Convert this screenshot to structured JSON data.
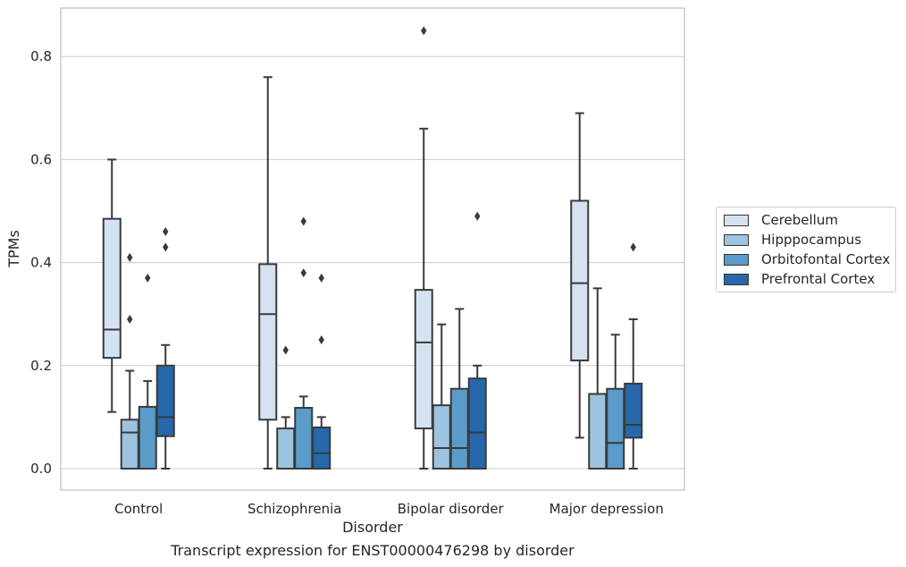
{
  "caption": "Transcript expression for ENST00000476298 by disorder",
  "chart_data": {
    "type": "boxplot",
    "xlabel": "Disorder",
    "ylabel": "TPMs",
    "ylim": [
      -0.04,
      0.89
    ],
    "yticks": [
      "0.0",
      "0.2",
      "0.4",
      "0.6",
      "0.8"
    ],
    "grid": true,
    "legend_position": "right",
    "categories": [
      "Control",
      "Schizophrenia",
      "Bipolar disorder",
      "Major depression"
    ],
    "series": [
      {
        "name": "Cerebellum",
        "color": "#d4e2f1",
        "boxes": [
          {
            "whislo": 0.11,
            "q1": 0.215,
            "med": 0.27,
            "q3": 0.485,
            "whishi": 0.6,
            "fliers": []
          },
          {
            "whislo": 0.0,
            "q1": 0.095,
            "med": 0.3,
            "q3": 0.397,
            "whishi": 0.76,
            "fliers": []
          },
          {
            "whislo": 0.0,
            "q1": 0.078,
            "med": 0.245,
            "q3": 0.347,
            "whishi": 0.66,
            "fliers": [
              0.85
            ]
          },
          {
            "whislo": 0.06,
            "q1": 0.21,
            "med": 0.36,
            "q3": 0.52,
            "whishi": 0.69,
            "fliers": []
          }
        ]
      },
      {
        "name": "Hipppocampus",
        "color": "#9cc4e0",
        "boxes": [
          {
            "whislo": 0.0,
            "q1": 0.0,
            "med": 0.07,
            "q3": 0.095,
            "whishi": 0.19,
            "fliers": [
              0.29,
              0.41
            ]
          },
          {
            "whislo": 0.0,
            "q1": 0.0,
            "med": 0.0,
            "q3": 0.078,
            "whishi": 0.1,
            "fliers": [
              0.23
            ]
          },
          {
            "whislo": 0.0,
            "q1": 0.0,
            "med": 0.04,
            "q3": 0.123,
            "whishi": 0.28,
            "fliers": []
          },
          {
            "whislo": 0.0,
            "q1": 0.0,
            "med": 0.0,
            "q3": 0.145,
            "whishi": 0.35,
            "fliers": []
          }
        ]
      },
      {
        "name": "Orbitofontal Cortex",
        "color": "#5a9bc9",
        "boxes": [
          {
            "whislo": 0.0,
            "q1": 0.0,
            "med": 0.0,
            "q3": 0.12,
            "whishi": 0.17,
            "fliers": [
              0.37
            ]
          },
          {
            "whislo": 0.0,
            "q1": 0.0,
            "med": 0.0,
            "q3": 0.118,
            "whishi": 0.14,
            "fliers": [
              0.38,
              0.48
            ]
          },
          {
            "whislo": 0.0,
            "q1": 0.0,
            "med": 0.04,
            "q3": 0.155,
            "whishi": 0.31,
            "fliers": []
          },
          {
            "whislo": 0.0,
            "q1": 0.0,
            "med": 0.05,
            "q3": 0.155,
            "whishi": 0.26,
            "fliers": []
          }
        ]
      },
      {
        "name": "Prefrontal Cortex",
        "color": "#2668a9",
        "boxes": [
          {
            "whislo": 0.0,
            "q1": 0.063,
            "med": 0.1,
            "q3": 0.2,
            "whishi": 0.24,
            "fliers": [
              0.43,
              0.46
            ]
          },
          {
            "whislo": 0.0,
            "q1": 0.0,
            "med": 0.03,
            "q3": 0.08,
            "whishi": 0.1,
            "fliers": [
              0.25,
              0.37
            ]
          },
          {
            "whislo": 0.0,
            "q1": 0.0,
            "med": 0.07,
            "q3": 0.175,
            "whishi": 0.2,
            "fliers": [
              0.49
            ]
          },
          {
            "whislo": 0.0,
            "q1": 0.06,
            "med": 0.085,
            "q3": 0.165,
            "whishi": 0.29,
            "fliers": [
              0.43
            ]
          }
        ]
      }
    ]
  }
}
